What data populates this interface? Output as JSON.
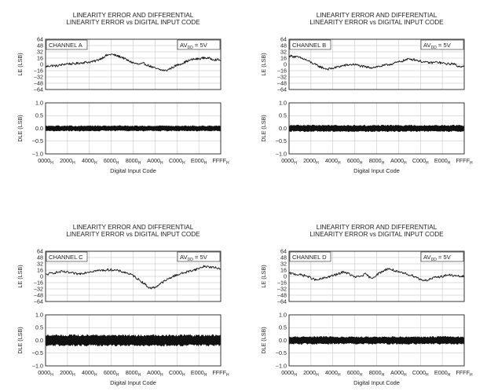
{
  "chart_data": [
    {
      "type": "line",
      "title": [
        "LINEARITY ERROR AND DIFFERENTIAL",
        "LINEARITY ERROR vs DIGITAL INPUT CODE"
      ],
      "channel_label": "CHANNEL A",
      "supply_label": {
        "prefix": "AV",
        "sub": "DD",
        "suffix": " = 5V"
      },
      "le_panel": {
        "ylabel": "LE (LSB)",
        "ylim": [
          -64,
          64
        ],
        "yticks": [
          "64",
          "48",
          "32",
          "16",
          "0",
          "−16",
          "−32",
          "−48",
          "−64"
        ],
        "x": [
          0,
          2048,
          4096,
          6144,
          8192,
          10240,
          12288,
          14336,
          16384,
          18432,
          20480,
          22528,
          24576,
          26624,
          28672,
          30720,
          32768,
          34816,
          36864,
          38912,
          40960,
          43008,
          45056,
          47104,
          49152,
          51200,
          53248,
          55296,
          57344,
          59392,
          61440,
          63488,
          65535
        ],
        "values": [
          -6,
          -3,
          -4,
          -1,
          2,
          1,
          3,
          5,
          6,
          8,
          14,
          22,
          26,
          22,
          18,
          10,
          4,
          0,
          2,
          -4,
          -10,
          -14,
          -16,
          -9,
          -2,
          3,
          9,
          13,
          14,
          17,
          15,
          12,
          11
        ]
      },
      "dle_panel": {
        "ylabel": "DLE (LSB)",
        "ylim": [
          -1.0,
          1.0
        ],
        "yticks": [
          "1.0",
          "0.5",
          "0.0",
          "−0.5",
          "−1.0"
        ],
        "band": [
          -0.1,
          0.1
        ]
      },
      "xticks": [
        {
          "main": "0000",
          "sub": "H"
        },
        {
          "main": "2000",
          "sub": "H"
        },
        {
          "main": "4000",
          "sub": "H"
        },
        {
          "main": "6000",
          "sub": "H"
        },
        {
          "main": "8000",
          "sub": "H"
        },
        {
          "main": "A000",
          "sub": "H"
        },
        {
          "main": "C000",
          "sub": "H"
        },
        {
          "main": "E000",
          "sub": "H"
        },
        {
          "main": "FFFF",
          "sub": "H"
        }
      ],
      "xlabel": "Digital Input Code"
    },
    {
      "type": "line",
      "title": [
        "LINEARITY ERROR AND DIFFERENTIAL",
        "LINEARITY ERROR vs DIGITAL INPUT CODE"
      ],
      "channel_label": "CHANNEL B",
      "supply_label": {
        "prefix": "AV",
        "sub": "DD",
        "suffix": " = 5V"
      },
      "le_panel": {
        "ylabel": "LE (LSB)",
        "ylim": [
          -64,
          64
        ],
        "yticks": [
          "64",
          "48",
          "32",
          "16",
          "0",
          "−16",
          "−32",
          "−48",
          "−64"
        ],
        "x": [
          0,
          2048,
          4096,
          6144,
          8192,
          10240,
          12288,
          14336,
          16384,
          18432,
          20480,
          22528,
          24576,
          26624,
          28672,
          30720,
          32768,
          34816,
          36864,
          38912,
          40960,
          43008,
          45056,
          47104,
          49152,
          51200,
          53248,
          55296,
          57344,
          59392,
          61440,
          63488,
          65535
        ],
        "values": [
          22,
          20,
          17,
          12,
          5,
          -2,
          -8,
          -12,
          -10,
          -6,
          -3,
          -1,
          0,
          -4,
          -7,
          -8,
          -6,
          -4,
          -1,
          2,
          6,
          10,
          14,
          12,
          8,
          5,
          4,
          6,
          3,
          1,
          2,
          -6,
          -3
        ]
      },
      "dle_panel": {
        "ylabel": "DLE (LSB)",
        "ylim": [
          -1.0,
          1.0
        ],
        "yticks": [
          "1.0",
          "0.5",
          "0.0",
          "−0.5",
          "−1.0"
        ],
        "band": [
          -0.12,
          0.12
        ]
      },
      "xticks": [
        {
          "main": "0000",
          "sub": "H"
        },
        {
          "main": "2000",
          "sub": "H"
        },
        {
          "main": "4000",
          "sub": "H"
        },
        {
          "main": "6000",
          "sub": "H"
        },
        {
          "main": "8000",
          "sub": "H"
        },
        {
          "main": "A000",
          "sub": "H"
        },
        {
          "main": "C000",
          "sub": "H"
        },
        {
          "main": "E000",
          "sub": "H"
        },
        {
          "main": "FFFF",
          "sub": "H"
        }
      ],
      "xlabel": "Digital Input Code"
    },
    {
      "type": "line",
      "title": [
        "LINEARITY ERROR AND DIFFERENTIAL",
        "LINEARITY ERROR vs DIGITAL INPUT CODE"
      ],
      "channel_label": "CHANNEL C",
      "supply_label": {
        "prefix": "AV",
        "sub": "DD",
        "suffix": " = 5V"
      },
      "le_panel": {
        "ylabel": "LE (LSB)",
        "ylim": [
          -64,
          64
        ],
        "yticks": [
          "64",
          "48",
          "32",
          "16",
          "0",
          "−16",
          "−32",
          "−48",
          "−64"
        ],
        "x": [
          0,
          2048,
          4096,
          6144,
          8192,
          10240,
          12288,
          14336,
          16384,
          18432,
          20480,
          22528,
          24576,
          26624,
          28672,
          30720,
          32768,
          34816,
          36864,
          38912,
          40960,
          43008,
          45056,
          47104,
          49152,
          51200,
          53248,
          55296,
          57344,
          59392,
          61440,
          63488,
          65535
        ],
        "values": [
          4,
          8,
          10,
          12,
          10,
          8,
          6,
          9,
          12,
          14,
          15,
          16,
          17,
          15,
          12,
          8,
          2,
          -8,
          -18,
          -30,
          -28,
          -18,
          -10,
          -2,
          4,
          8,
          12,
          16,
          20,
          26,
          24,
          22,
          20
        ]
      },
      "dle_panel": {
        "ylabel": "DLE (LSB)",
        "ylim": [
          -1.0,
          1.0
        ],
        "yticks": [
          "1.0",
          "0.5",
          "0.0",
          "−0.5",
          "−1.0"
        ],
        "band": [
          -0.2,
          0.2
        ]
      },
      "xticks": [
        {
          "main": "0000",
          "sub": "H"
        },
        {
          "main": "2000",
          "sub": "H"
        },
        {
          "main": "4000",
          "sub": "H"
        },
        {
          "main": "6000",
          "sub": "H"
        },
        {
          "main": "8000",
          "sub": "H"
        },
        {
          "main": "A000",
          "sub": "H"
        },
        {
          "main": "C000",
          "sub": "H"
        },
        {
          "main": "E000",
          "sub": "H"
        },
        {
          "main": "FFFF",
          "sub": "H"
        }
      ],
      "xlabel": "Digital Input Code"
    },
    {
      "type": "line",
      "title": [
        "LINEARITY ERROR AND DIFFERENTIAL",
        "LINEARITY ERROR vs DIGITAL INPUT CODE"
      ],
      "channel_label": "CHANNEL D",
      "supply_label": {
        "prefix": "AV",
        "sub": "DD",
        "suffix": " = 5V"
      },
      "le_panel": {
        "ylabel": "LE (LSB)",
        "ylim": [
          -64,
          64
        ],
        "yticks": [
          "64",
          "48",
          "32",
          "16",
          "0",
          "−16",
          "−32",
          "−48",
          "−64"
        ],
        "x": [
          0,
          2048,
          4096,
          6144,
          8192,
          10240,
          12288,
          14336,
          16384,
          18432,
          20480,
          22528,
          24576,
          26624,
          28672,
          30720,
          32768,
          34816,
          36864,
          38912,
          40960,
          43008,
          45056,
          47104,
          49152,
          51200,
          53248,
          55296,
          57344,
          59392,
          61440,
          63488,
          65535
        ],
        "values": [
          8,
          6,
          4,
          2,
          -4,
          -10,
          -6,
          -2,
          2,
          6,
          12,
          6,
          -2,
          0,
          6,
          -6,
          4,
          12,
          20,
          16,
          10,
          8,
          4,
          0,
          -8,
          -10,
          -6,
          -2,
          0,
          4,
          2,
          0,
          0
        ]
      },
      "dle_panel": {
        "ylabel": "DLE (LSB)",
        "ylim": [
          -1.0,
          1.0
        ],
        "yticks": [
          "1.0",
          "0.5",
          "0.0",
          "−0.5",
          "−1.0"
        ],
        "band": [
          -0.14,
          0.14
        ]
      },
      "xticks": [
        {
          "main": "0000",
          "sub": "H"
        },
        {
          "main": "2000",
          "sub": "H"
        },
        {
          "main": "4000",
          "sub": "H"
        },
        {
          "main": "6000",
          "sub": "H"
        },
        {
          "main": "8000",
          "sub": "H"
        },
        {
          "main": "A000",
          "sub": "H"
        },
        {
          "main": "C000",
          "sub": "H"
        },
        {
          "main": "E000",
          "sub": "H"
        },
        {
          "main": "FFFF",
          "sub": "H"
        }
      ],
      "xlabel": "Digital Input Code"
    }
  ]
}
